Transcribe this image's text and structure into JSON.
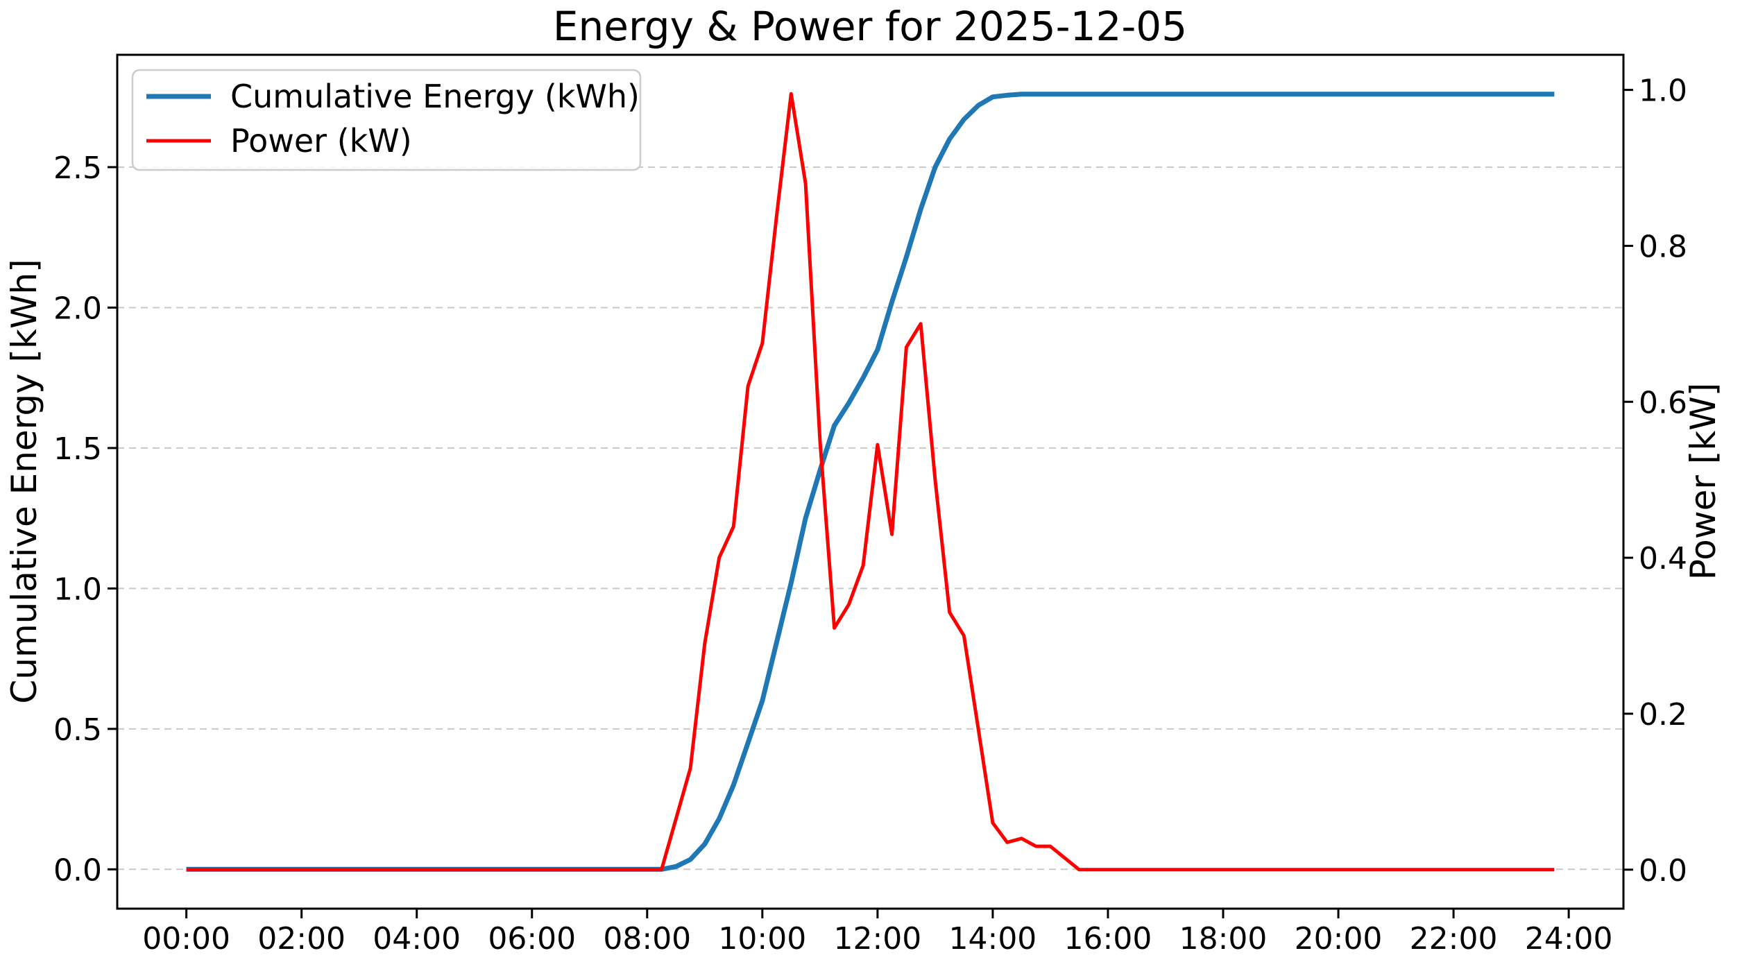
{
  "figure": {
    "title": "Energy & Power for 2025-12-05",
    "background_color": "#ffffff"
  },
  "axes": {
    "x": {
      "tick_labels": [
        "00:00",
        "02:00",
        "04:00",
        "06:00",
        "08:00",
        "10:00",
        "12:00",
        "14:00",
        "16:00",
        "18:00",
        "20:00",
        "22:00",
        "24:00"
      ],
      "tick_hours": [
        0,
        2,
        4,
        6,
        8,
        10,
        12,
        14,
        16,
        18,
        20,
        22,
        24
      ],
      "lim_hours": [
        -1.2,
        24.95
      ]
    },
    "y_left": {
      "label": "Cumulative Energy [kWh]",
      "ticks": [
        0.0,
        0.5,
        1.0,
        1.5,
        2.0,
        2.5
      ],
      "tick_labels": [
        "0.0",
        "0.5",
        "1.0",
        "1.5",
        "2.0",
        "2.5"
      ],
      "lim": [
        -0.14,
        2.9
      ]
    },
    "y_right": {
      "label": "Power [kW]",
      "ticks": [
        0.0,
        0.2,
        0.4,
        0.6,
        0.8,
        1.0
      ],
      "tick_labels": [
        "0.0",
        "0.2",
        "0.4",
        "0.6",
        "0.8",
        "1.0"
      ],
      "lim": [
        -0.05,
        1.045
      ]
    }
  },
  "legend": {
    "items": [
      {
        "label": "Cumulative Energy (kWh)",
        "color": "#1f77b4"
      },
      {
        "label": "Power (kW)",
        "color": "#ff0000"
      }
    ]
  },
  "chart_data": {
    "type": "line",
    "title": "Energy & Power for 2025-12-05",
    "xlabel": "",
    "ylabel_left": "Cumulative Energy [kWh]",
    "ylabel_right": "Power [kW]",
    "x_unit": "hours (time of day)",
    "grid": "horizontal dashed gridlines at left-axis ticks",
    "legend_position": "upper left",
    "xlim_hours": [
      -1.2,
      24.95
    ],
    "ylim_left": [
      -0.14,
      2.9
    ],
    "ylim_right": [
      -0.05,
      1.045
    ],
    "x_hours": [
      0,
      0.25,
      0.5,
      0.75,
      1,
      1.25,
      1.5,
      1.75,
      2,
      2.25,
      2.5,
      2.75,
      3,
      3.25,
      3.5,
      3.75,
      4,
      4.25,
      4.5,
      4.75,
      5,
      5.25,
      5.5,
      5.75,
      6,
      6.25,
      6.5,
      6.75,
      7,
      7.25,
      7.5,
      7.75,
      8,
      8.25,
      8.5,
      8.75,
      9,
      9.25,
      9.5,
      9.75,
      10,
      10.25,
      10.5,
      10.75,
      11,
      11.25,
      11.5,
      11.75,
      12,
      12.25,
      12.5,
      12.75,
      13,
      13.25,
      13.5,
      13.75,
      14,
      14.25,
      14.5,
      14.75,
      15,
      15.25,
      15.5,
      15.75,
      16,
      16.25,
      16.5,
      16.75,
      17,
      17.25,
      17.5,
      17.75,
      18,
      18.25,
      18.5,
      18.75,
      19,
      19.25,
      19.5,
      19.75,
      20,
      20.25,
      20.5,
      20.75,
      21,
      21.25,
      21.5,
      21.75,
      22,
      22.25,
      22.5,
      22.75,
      23,
      23.25,
      23.5,
      23.75
    ],
    "series": [
      {
        "name": "Cumulative Energy (kWh)",
        "axis": "left",
        "color": "#1f77b4",
        "values": [
          0,
          0,
          0,
          0,
          0,
          0,
          0,
          0,
          0,
          0,
          0,
          0,
          0,
          0,
          0,
          0,
          0,
          0,
          0,
          0,
          0,
          0,
          0,
          0,
          0,
          0,
          0,
          0,
          0,
          0,
          0,
          0,
          0,
          0,
          0.01,
          0.035,
          0.09,
          0.18,
          0.3,
          0.45,
          0.6,
          0.81,
          1.02,
          1.25,
          1.42,
          1.58,
          1.66,
          1.75,
          1.85,
          2.02,
          2.18,
          2.35,
          2.5,
          2.6,
          2.67,
          2.72,
          2.75,
          2.756,
          2.76,
          2.76,
          2.76,
          2.76,
          2.76,
          2.76,
          2.76,
          2.76,
          2.76,
          2.76,
          2.76,
          2.76,
          2.76,
          2.76,
          2.76,
          2.76,
          2.76,
          2.76,
          2.76,
          2.76,
          2.76,
          2.76,
          2.76,
          2.76,
          2.76,
          2.76,
          2.76,
          2.76,
          2.76,
          2.76,
          2.76,
          2.76,
          2.76,
          2.76,
          2.76,
          2.76,
          2.76,
          2.76
        ]
      },
      {
        "name": "Power (kW)",
        "axis": "right",
        "color": "#ff0000",
        "values": [
          0,
          0,
          0,
          0,
          0,
          0,
          0,
          0,
          0,
          0,
          0,
          0,
          0,
          0,
          0,
          0,
          0,
          0,
          0,
          0,
          0,
          0,
          0,
          0,
          0,
          0,
          0,
          0,
          0,
          0,
          0,
          0,
          0,
          0,
          0.065,
          0.13,
          0.29,
          0.4,
          0.44,
          0.62,
          0.675,
          0.84,
          0.995,
          0.88,
          0.55,
          0.31,
          0.34,
          0.39,
          0.545,
          0.43,
          0.67,
          0.7,
          0.5,
          0.33,
          0.3,
          0.18,
          0.06,
          0.035,
          0.04,
          0.03,
          0.03,
          0.015,
          0,
          0,
          0,
          0,
          0,
          0,
          0,
          0,
          0,
          0,
          0,
          0,
          0,
          0,
          0,
          0,
          0,
          0,
          0,
          0,
          0,
          0,
          0,
          0,
          0,
          0,
          0,
          0,
          0,
          0,
          0,
          0,
          0,
          0,
          0,
          0
        ]
      }
    ]
  }
}
